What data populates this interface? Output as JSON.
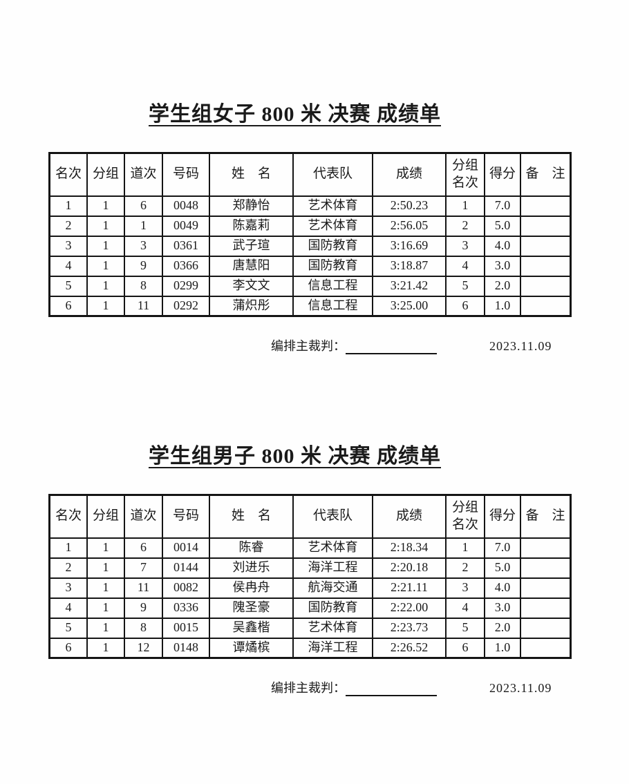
{
  "page": {
    "background": "#fefefe",
    "text_color": "#1a1a1a",
    "border_color": "#141414"
  },
  "sections": [
    {
      "title": "学生组女子 800 米 决赛 成绩单",
      "columns": [
        "名次",
        "分组",
        "道次",
        "号码",
        "姓　名",
        "代表队",
        "成绩",
        "分组名次",
        "得分",
        "备　注"
      ],
      "rows": [
        [
          "1",
          "1",
          "6",
          "0048",
          "郑静怡",
          "艺术体育",
          "2:50.23",
          "1",
          "7.0",
          ""
        ],
        [
          "2",
          "1",
          "1",
          "0049",
          "陈嘉莉",
          "艺术体育",
          "2:56.05",
          "2",
          "5.0",
          ""
        ],
        [
          "3",
          "1",
          "3",
          "0361",
          "武子瑄",
          "国防教育",
          "3:16.69",
          "3",
          "4.0",
          ""
        ],
        [
          "4",
          "1",
          "9",
          "0366",
          "唐慧阳",
          "国防教育",
          "3:18.87",
          "4",
          "3.0",
          ""
        ],
        [
          "5",
          "1",
          "8",
          "0299",
          "李文文",
          "信息工程",
          "3:21.42",
          "5",
          "2.0",
          ""
        ],
        [
          "6",
          "1",
          "11",
          "0292",
          "蒲炽彤",
          "信息工程",
          "3:25.00",
          "6",
          "1.0",
          ""
        ]
      ],
      "footer": {
        "judge_label": "编排主裁判：",
        "date": "2023.11.09"
      }
    },
    {
      "title": "学生组男子 800 米 决赛 成绩单",
      "columns": [
        "名次",
        "分组",
        "道次",
        "号码",
        "姓　名",
        "代表队",
        "成绩",
        "分组名次",
        "得分",
        "备　注"
      ],
      "rows": [
        [
          "1",
          "1",
          "6",
          "0014",
          "陈睿",
          "艺术体育",
          "2:18.34",
          "1",
          "7.0",
          ""
        ],
        [
          "2",
          "1",
          "7",
          "0144",
          "刘进乐",
          "海洋工程",
          "2:20.18",
          "2",
          "5.0",
          ""
        ],
        [
          "3",
          "1",
          "11",
          "0082",
          "侯冉舟",
          "航海交通",
          "2:21.11",
          "3",
          "4.0",
          ""
        ],
        [
          "4",
          "1",
          "9",
          "0336",
          "隗圣豪",
          "国防教育",
          "2:22.00",
          "4",
          "3.0",
          ""
        ],
        [
          "5",
          "1",
          "8",
          "0015",
          "吴鑫楷",
          "艺术体育",
          "2:23.73",
          "5",
          "2.0",
          ""
        ],
        [
          "6",
          "1",
          "12",
          "0148",
          "谭燏槟",
          "海洋工程",
          "2:26.52",
          "6",
          "1.0",
          ""
        ]
      ],
      "footer": {
        "judge_label": "编排主裁判：",
        "date": "2023.11.09"
      }
    }
  ]
}
